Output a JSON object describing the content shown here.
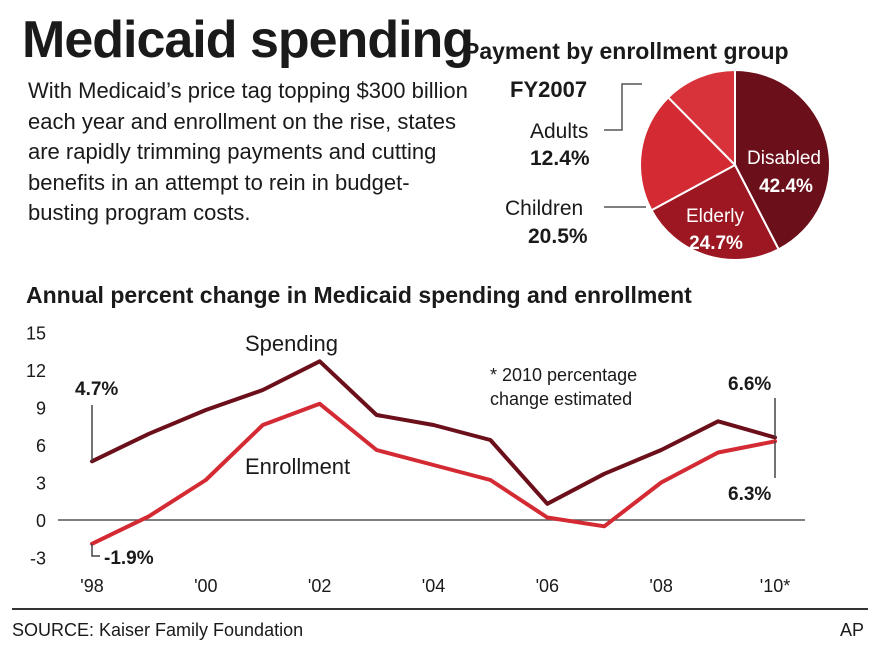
{
  "header": {
    "title": "Medicaid spending",
    "intro": "With Medicaid’s price tag topping $300 billion each year and enrollment on the rise, states are rapidly trimming payments and cutting benefits in an attempt to rein in budget-busting program costs."
  },
  "footer": {
    "source": "SOURCE: Kaiser Family Foundation",
    "credit": "AP"
  },
  "colors": {
    "spending": "#6b0f1a",
    "enrollment": "#d42a33",
    "disabled": "#6b0f1a",
    "elderly": "#9c1722",
    "children": "#d42a33",
    "adults": "#d8323a"
  },
  "chart_data": [
    {
      "type": "pie",
      "title": "Payment by enrollment group",
      "subtitle": "FY2007",
      "slices": [
        {
          "label": "Disabled",
          "display": "42.4%",
          "value": 42.4
        },
        {
          "label": "Elderly",
          "display": "24.7%",
          "value": 24.7
        },
        {
          "label": "Children",
          "display": "20.5%",
          "value": 20.5
        },
        {
          "label": "Adults",
          "display": "12.4%",
          "value": 12.4
        }
      ]
    },
    {
      "type": "line",
      "title": "Annual percent change in Medicaid spending and enrollment",
      "x": [
        1998,
        1999,
        2000,
        2001,
        2002,
        2003,
        2004,
        2005,
        2006,
        2007,
        2008,
        2009,
        2010
      ],
      "xtick_values": [
        1998,
        2000,
        2002,
        2004,
        2006,
        2008,
        2010
      ],
      "xtick_labels": [
        "'98",
        "'00",
        "'02",
        "'04",
        "'06",
        "'08",
        "'10*"
      ],
      "ylim": [
        -3,
        15
      ],
      "yticks": [
        15,
        12,
        9,
        6,
        3,
        0,
        -3
      ],
      "series": [
        {
          "name": "Spending",
          "values": [
            4.7,
            6.9,
            8.8,
            10.4,
            12.7,
            8.4,
            7.6,
            6.4,
            1.3,
            3.7,
            5.6,
            7.9,
            6.6
          ]
        },
        {
          "name": "Enrollment",
          "values": [
            -1.9,
            0.3,
            3.2,
            7.6,
            9.3,
            5.6,
            4.4,
            3.2,
            0.2,
            -0.5,
            3.0,
            5.4,
            6.3
          ]
        }
      ],
      "annotations": {
        "spending_start": "4.7%",
        "enrollment_start": "-1.9%",
        "spending_end": "6.6%",
        "enrollment_end": "6.3%",
        "note_line1": "* 2010 percentage",
        "note_line2": "change estimated"
      }
    }
  ]
}
